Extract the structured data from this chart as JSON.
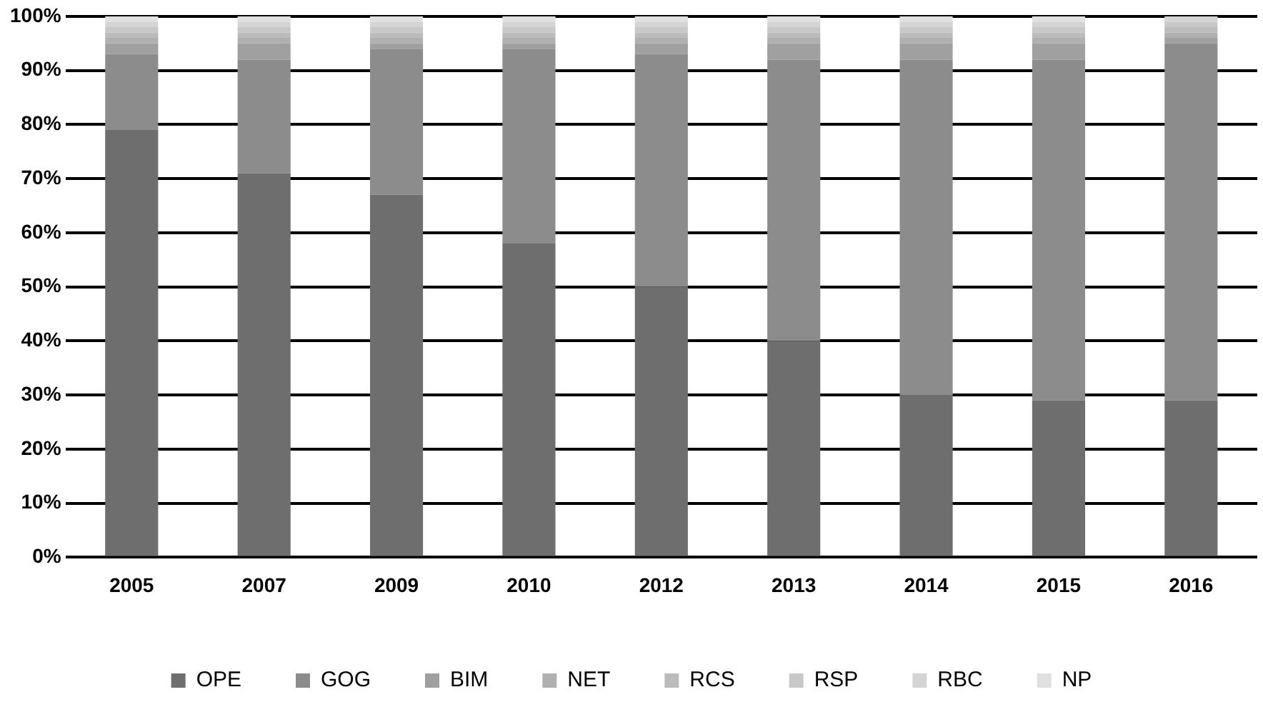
{
  "chart_data": {
    "type": "bar",
    "stacked": true,
    "categories": [
      "2005",
      "2007",
      "2009",
      "2010",
      "2012",
      "2013",
      "2014",
      "2015",
      "2016"
    ],
    "series": [
      {
        "name": "OPE",
        "color": "#6e6e6e",
        "values": [
          79,
          71,
          67,
          58,
          50,
          40,
          30,
          29,
          29
        ]
      },
      {
        "name": "GOG",
        "color": "#8c8c8c",
        "values": [
          14,
          21,
          27,
          36,
          43,
          52,
          62,
          63,
          66
        ]
      },
      {
        "name": "BIM",
        "color": "#a0a0a0",
        "values": [
          2,
          3,
          1,
          1,
          2,
          3,
          3,
          3,
          1
        ]
      },
      {
        "name": "NET",
        "color": "#b0b0b0",
        "values": [
          1,
          1,
          1,
          1,
          1,
          1,
          1,
          1,
          1
        ]
      },
      {
        "name": "RCS",
        "color": "#bcbcbc",
        "values": [
          1,
          1,
          1,
          1,
          1,
          1,
          1,
          1,
          1
        ]
      },
      {
        "name": "RSP",
        "color": "#c8c8c8",
        "values": [
          1,
          1,
          1,
          1,
          1,
          1,
          1,
          1,
          1
        ]
      },
      {
        "name": "RBC",
        "color": "#d4d4d4",
        "values": [
          1,
          1,
          1,
          1,
          1,
          1,
          1,
          1,
          1
        ]
      },
      {
        "name": "NP",
        "color": "#e0e0e0",
        "values": [
          1,
          1,
          1,
          1,
          1,
          1,
          1,
          1,
          0
        ]
      }
    ],
    "ylim": [
      0,
      100
    ],
    "yticks": [
      {
        "value": 0,
        "label": "0%"
      },
      {
        "value": 10,
        "label": "10%"
      },
      {
        "value": 20,
        "label": "20%"
      },
      {
        "value": 30,
        "label": "30%"
      },
      {
        "value": 40,
        "label": "40%"
      },
      {
        "value": 50,
        "label": "50%"
      },
      {
        "value": 60,
        "label": "60%"
      },
      {
        "value": 70,
        "label": "70%"
      },
      {
        "value": 80,
        "label": "80%"
      },
      {
        "value": 90,
        "label": "90%"
      },
      {
        "value": 100,
        "label": "100%"
      }
    ],
    "grid": "y",
    "legend": "bottom"
  }
}
